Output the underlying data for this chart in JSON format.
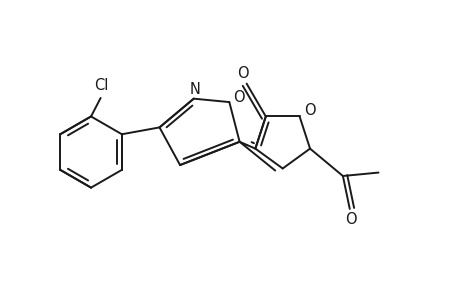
{
  "bg_color": "#ffffff",
  "line_color": "#1a1a1a",
  "line_width": 1.4,
  "font_size": 10.5,
  "figsize": [
    4.6,
    3.0
  ],
  "dpi": 100,
  "xlim": [
    0.5,
    7.2
  ],
  "ylim": [
    0.3,
    3.2
  ]
}
